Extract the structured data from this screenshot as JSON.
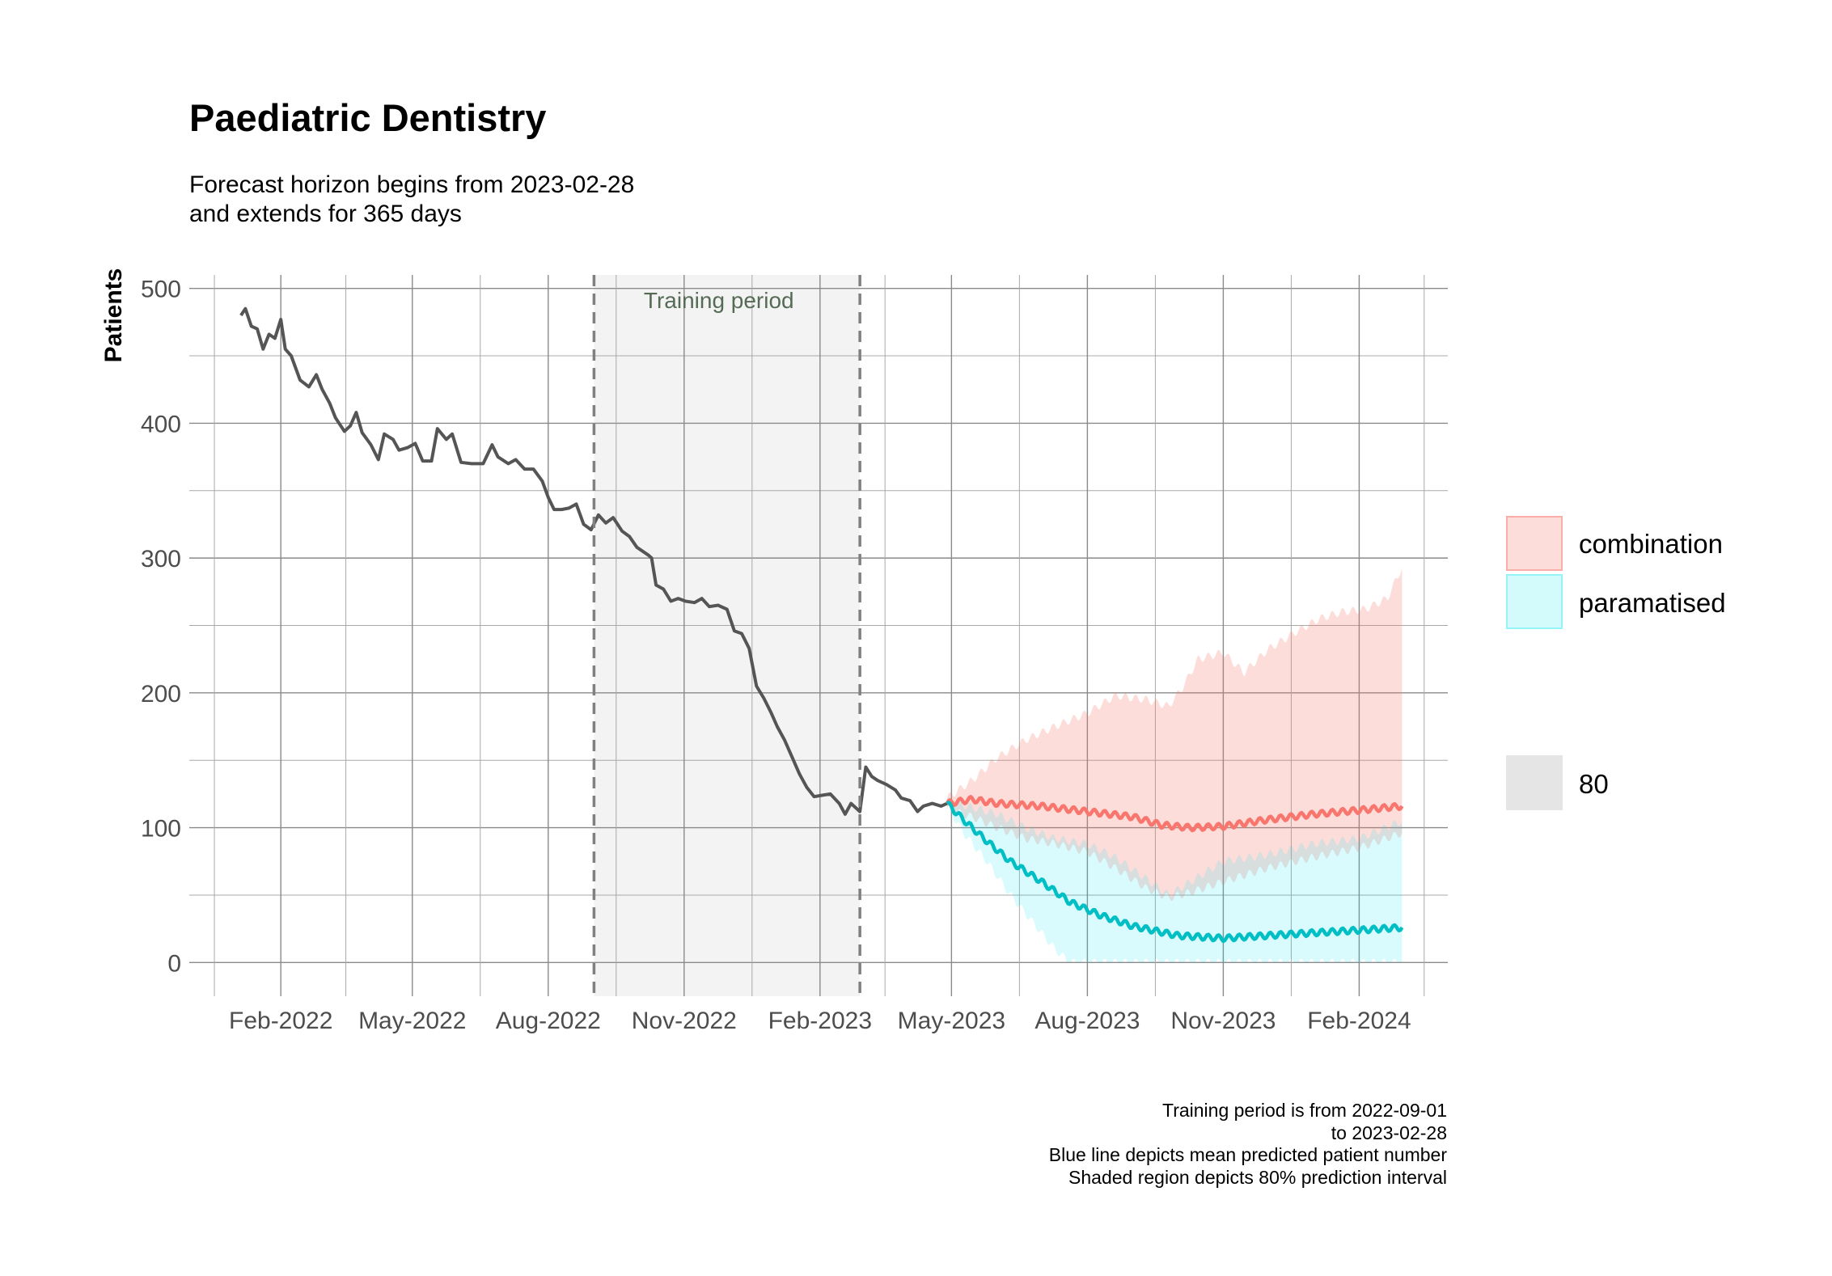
{
  "chart_data": {
    "type": "line",
    "title": "Paediatric Dentistry",
    "subtitle": [
      "Forecast horizon begins from 2023-02-28",
      "and extends for 365 days"
    ],
    "xlabel": "",
    "ylabel": "Patients",
    "x_type": "date",
    "xlim": [
      "2021-12-01",
      "2024-04-01"
    ],
    "ylim": [
      -25,
      510
    ],
    "y_ticks": [
      0,
      100,
      200,
      300,
      400,
      500
    ],
    "x_ticks": [
      {
        "date": "2022-02-01",
        "label": "Feb-2022"
      },
      {
        "date": "2022-05-01",
        "label": "May-2022"
      },
      {
        "date": "2022-08-01",
        "label": "Aug-2022"
      },
      {
        "date": "2022-11-01",
        "label": "Nov-2022"
      },
      {
        "date": "2023-02-01",
        "label": "Feb-2023"
      },
      {
        "date": "2023-05-01",
        "label": "May-2023"
      },
      {
        "date": "2023-08-01",
        "label": "Aug-2023"
      },
      {
        "date": "2023-11-01",
        "label": "Nov-2023"
      },
      {
        "date": "2024-02-01",
        "label": "Feb-2024"
      }
    ],
    "grid": true,
    "training_period": {
      "start": "2022-09-01",
      "end": "2023-02-28",
      "label": "Training period"
    },
    "observed": {
      "color": "#555555",
      "points": [
        [
          "2022-01-05",
          480
        ],
        [
          "2022-01-08",
          485
        ],
        [
          "2022-01-12",
          472
        ],
        [
          "2022-01-16",
          470
        ],
        [
          "2022-01-20",
          455
        ],
        [
          "2022-01-24",
          466
        ],
        [
          "2022-01-28",
          463
        ],
        [
          "2022-02-01",
          477
        ],
        [
          "2022-02-04",
          455
        ],
        [
          "2022-02-08",
          450
        ],
        [
          "2022-02-14",
          432
        ],
        [
          "2022-02-20",
          427
        ],
        [
          "2022-02-25",
          436
        ],
        [
          "2022-03-01",
          425
        ],
        [
          "2022-03-06",
          415
        ],
        [
          "2022-03-10",
          404
        ],
        [
          "2022-03-16",
          394
        ],
        [
          "2022-03-20",
          398
        ],
        [
          "2022-03-24",
          408
        ],
        [
          "2022-03-28",
          393
        ],
        [
          "2022-04-03",
          384
        ],
        [
          "2022-04-08",
          373
        ],
        [
          "2022-04-12",
          392
        ],
        [
          "2022-04-18",
          388
        ],
        [
          "2022-04-22",
          380
        ],
        [
          "2022-04-28",
          382
        ],
        [
          "2022-05-03",
          385
        ],
        [
          "2022-05-08",
          372
        ],
        [
          "2022-05-14",
          372
        ],
        [
          "2022-05-18",
          396
        ],
        [
          "2022-05-24",
          388
        ],
        [
          "2022-05-28",
          392
        ],
        [
          "2022-06-03",
          371
        ],
        [
          "2022-06-10",
          370
        ],
        [
          "2022-06-18",
          370
        ],
        [
          "2022-06-24",
          384
        ],
        [
          "2022-06-28",
          375
        ],
        [
          "2022-07-05",
          370
        ],
        [
          "2022-07-10",
          373
        ],
        [
          "2022-07-16",
          366
        ],
        [
          "2022-07-22",
          366
        ],
        [
          "2022-07-28",
          357
        ],
        [
          "2022-08-01",
          345
        ],
        [
          "2022-08-05",
          336
        ],
        [
          "2022-08-10",
          336
        ],
        [
          "2022-08-15",
          337
        ],
        [
          "2022-08-20",
          340
        ],
        [
          "2022-08-25",
          325
        ],
        [
          "2022-08-30",
          321
        ],
        [
          "2022-09-04",
          332
        ],
        [
          "2022-09-09",
          326
        ],
        [
          "2022-09-14",
          330
        ],
        [
          "2022-09-20",
          320
        ],
        [
          "2022-09-25",
          316
        ],
        [
          "2022-09-30",
          308
        ],
        [
          "2022-10-04",
          305
        ],
        [
          "2022-10-08",
          302
        ],
        [
          "2022-10-10",
          300
        ],
        [
          "2022-10-13",
          280
        ],
        [
          "2022-10-18",
          277
        ],
        [
          "2022-10-23",
          268
        ],
        [
          "2022-10-28",
          270
        ],
        [
          "2022-11-02",
          268
        ],
        [
          "2022-11-08",
          267
        ],
        [
          "2022-11-13",
          270
        ],
        [
          "2022-11-18",
          264
        ],
        [
          "2022-11-24",
          265
        ],
        [
          "2022-11-30",
          262
        ],
        [
          "2022-12-05",
          246
        ],
        [
          "2022-12-10",
          244
        ],
        [
          "2022-12-15",
          233
        ],
        [
          "2022-12-20",
          205
        ],
        [
          "2022-12-25",
          196
        ],
        [
          "2022-12-30",
          185
        ],
        [
          "2023-01-03",
          175
        ],
        [
          "2023-01-08",
          165
        ],
        [
          "2023-01-14",
          150
        ],
        [
          "2023-01-18",
          140
        ],
        [
          "2023-01-23",
          130
        ],
        [
          "2023-01-28",
          123
        ],
        [
          "2023-02-02",
          124
        ],
        [
          "2023-02-08",
          125
        ],
        [
          "2023-02-14",
          118
        ],
        [
          "2023-02-18",
          110
        ],
        [
          "2023-02-22",
          118
        ],
        [
          "2023-02-28",
          112
        ],
        [
          "2023-03-04",
          145
        ],
        [
          "2023-03-08",
          138
        ],
        [
          "2023-03-12",
          135
        ],
        [
          "2023-03-18",
          132
        ],
        [
          "2023-03-24",
          128
        ],
        [
          "2023-03-28",
          122
        ],
        [
          "2023-04-03",
          120
        ],
        [
          "2023-04-08",
          112
        ],
        [
          "2023-04-12",
          116
        ],
        [
          "2023-04-18",
          118
        ],
        [
          "2023-04-24",
          116
        ],
        [
          "2023-04-28",
          118
        ]
      ]
    },
    "series": [
      {
        "name": "combination",
        "color": "#F8766D",
        "mean": [
          [
            "2023-04-28",
            118
          ],
          [
            "2023-05-15",
            121
          ],
          [
            "2023-06-01",
            118
          ],
          [
            "2023-07-01",
            116
          ],
          [
            "2023-08-01",
            112
          ],
          [
            "2023-09-01",
            108
          ],
          [
            "2023-09-20",
            102
          ],
          [
            "2023-10-10",
            100
          ],
          [
            "2023-11-01",
            101
          ],
          [
            "2023-12-01",
            106
          ],
          [
            "2024-01-01",
            110
          ],
          [
            "2024-02-01",
            113
          ],
          [
            "2024-03-01",
            116
          ]
        ],
        "upper": [
          [
            "2023-04-28",
            122
          ],
          [
            "2023-05-15",
            135
          ],
          [
            "2023-06-01",
            152
          ],
          [
            "2023-06-20",
            165
          ],
          [
            "2023-07-10",
            175
          ],
          [
            "2023-08-01",
            185
          ],
          [
            "2023-08-20",
            198
          ],
          [
            "2023-09-10",
            195
          ],
          [
            "2023-09-25",
            190
          ],
          [
            "2023-10-05",
            205
          ],
          [
            "2023-10-15",
            225
          ],
          [
            "2023-11-01",
            230
          ],
          [
            "2023-11-15",
            215
          ],
          [
            "2023-12-01",
            232
          ],
          [
            "2023-12-20",
            245
          ],
          [
            "2024-01-05",
            255
          ],
          [
            "2024-01-20",
            260
          ],
          [
            "2024-02-05",
            262
          ],
          [
            "2024-02-20",
            270
          ],
          [
            "2024-03-01",
            293
          ]
        ],
        "lower": [
          [
            "2023-04-28",
            114
          ],
          [
            "2023-05-15",
            108
          ],
          [
            "2023-06-01",
            100
          ],
          [
            "2023-06-20",
            92
          ],
          [
            "2023-07-10",
            88
          ],
          [
            "2023-08-01",
            82
          ],
          [
            "2023-08-20",
            70
          ],
          [
            "2023-09-10",
            55
          ],
          [
            "2023-09-25",
            48
          ],
          [
            "2023-10-10",
            52
          ],
          [
            "2023-11-01",
            60
          ],
          [
            "2023-12-01",
            70
          ],
          [
            "2024-01-01",
            78
          ],
          [
            "2024-02-01",
            85
          ],
          [
            "2024-03-01",
            96
          ]
        ]
      },
      {
        "name": "paramatised",
        "color": "#00BFC4",
        "mean": [
          [
            "2023-04-28",
            118
          ],
          [
            "2023-05-10",
            105
          ],
          [
            "2023-05-25",
            90
          ],
          [
            "2023-06-10",
            75
          ],
          [
            "2023-07-01",
            60
          ],
          [
            "2023-07-20",
            45
          ],
          [
            "2023-08-10",
            35
          ],
          [
            "2023-09-01",
            27
          ],
          [
            "2023-10-01",
            20
          ],
          [
            "2023-11-01",
            18
          ],
          [
            "2023-12-01",
            20
          ],
          [
            "2024-01-01",
            22
          ],
          [
            "2024-02-01",
            24
          ],
          [
            "2024-03-01",
            26
          ]
        ],
        "upper": [
          [
            "2023-04-28",
            120
          ],
          [
            "2023-05-15",
            115
          ],
          [
            "2023-06-01",
            110
          ],
          [
            "2023-06-20",
            100
          ],
          [
            "2023-07-10",
            92
          ],
          [
            "2023-08-01",
            88
          ],
          [
            "2023-08-20",
            78
          ],
          [
            "2023-09-10",
            62
          ],
          [
            "2023-09-25",
            50
          ],
          [
            "2023-10-10",
            60
          ],
          [
            "2023-11-01",
            75
          ],
          [
            "2023-12-01",
            80
          ],
          [
            "2024-01-01",
            88
          ],
          [
            "2024-02-01",
            92
          ],
          [
            "2024-03-01",
            105
          ]
        ],
        "lower": [
          [
            "2023-04-28",
            116
          ],
          [
            "2023-05-10",
            95
          ],
          [
            "2023-05-25",
            75
          ],
          [
            "2023-06-10",
            50
          ],
          [
            "2023-06-25",
            30
          ],
          [
            "2023-07-10",
            10
          ],
          [
            "2023-07-20",
            0
          ],
          [
            "2024-03-01",
            0
          ]
        ]
      }
    ],
    "legend": {
      "position": "right",
      "items": [
        {
          "name": "combination",
          "color": "#F8766D"
        },
        {
          "name": "paramatised",
          "color": "#00BFC4"
        }
      ],
      "level_label": "80"
    },
    "caption": [
      "Training period is from 2022-09-01",
      "to 2023-02-28",
      "Blue line depicts mean predicted patient number",
      "Shaded region depicts 80% prediction interval"
    ]
  }
}
